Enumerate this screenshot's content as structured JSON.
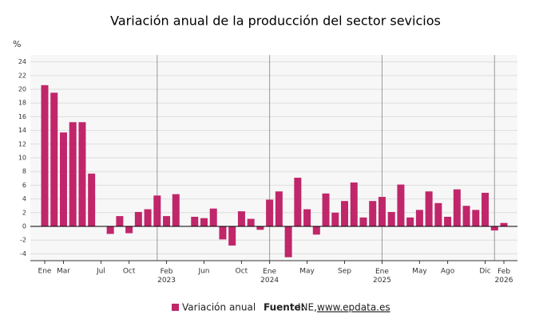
{
  "chart_data": {
    "type": "bar",
    "title": "Variación anual de la producción del sector sevicios",
    "y_label": "%",
    "categories": [
      "Ene",
      null,
      "Mar",
      null,
      null,
      null,
      "Jul",
      null,
      null,
      "Oct",
      null,
      null,
      null,
      "Feb 2023",
      null,
      null,
      null,
      "Jun",
      null,
      null,
      null,
      "Oct",
      null,
      null,
      "Ene 2024",
      null,
      null,
      null,
      "May",
      null,
      null,
      null,
      "Sep",
      null,
      null,
      null,
      "Ene 2025",
      null,
      null,
      null,
      "May",
      null,
      null,
      "Ago",
      null,
      null,
      null,
      "Dic",
      null,
      "Feb 2026"
    ],
    "series": [
      {
        "name": "Variación anual",
        "color": "#c0266a",
        "values": [
          20.6,
          19.5,
          13.7,
          15.2,
          15.2,
          7.7,
          0,
          -1.1,
          1.5,
          -1.0,
          2.1,
          2.5,
          4.5,
          1.5,
          4.7,
          0,
          1.4,
          1.2,
          2.6,
          -1.9,
          -2.8,
          2.2,
          1.1,
          -0.5,
          3.9,
          5.1,
          -4.5,
          7.1,
          2.5,
          -1.2,
          4.8,
          2.0,
          3.7,
          6.4,
          1.3,
          3.7,
          4.3,
          2.1,
          6.1,
          1.3,
          2.4,
          5.1,
          3.4,
          1.4,
          5.4,
          3.0,
          2.4,
          4.9,
          -0.6,
          0.5
        ]
      }
    ],
    "ylim": [
      -5,
      25
    ],
    "yticks": [
      -4,
      -2,
      0,
      2,
      4,
      6,
      8,
      10,
      12,
      14,
      16,
      18,
      20,
      22,
      24
    ],
    "grid": true,
    "source_prefix": "Fuente:",
    "source_name": "INE,",
    "source_url": "www.epdata.es"
  }
}
